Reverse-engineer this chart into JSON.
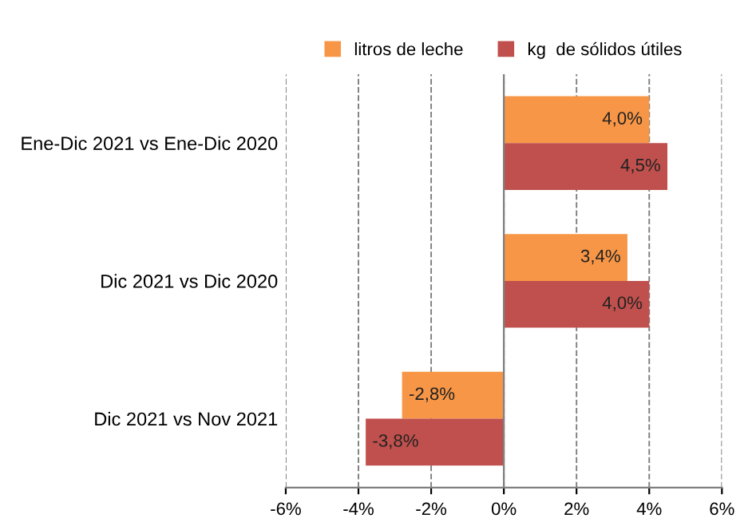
{
  "chart_data": {
    "type": "bar",
    "orientation": "horizontal",
    "categories": [
      "Ene-Dic 2021 vs Ene-Dic 2020",
      "Dic 2021 vs Dic 2020",
      "Dic 2021 vs Nov 2021"
    ],
    "series": [
      {
        "name": "litros de leche",
        "color": "#f79646",
        "values": [
          4.0,
          3.4,
          -2.8
        ],
        "value_labels": [
          "4,0%",
          "3,4%",
          "-2,8%"
        ]
      },
      {
        "name": "kg  de sólidos útiles",
        "color": "#c0504d",
        "values": [
          4.5,
          4.0,
          -3.8
        ],
        "value_labels": [
          "4,5%",
          "4,0%",
          "-3,8%"
        ]
      }
    ],
    "xlim": [
      -6,
      6
    ],
    "xticks": [
      {
        "value": -6,
        "label": "-6%"
      },
      {
        "value": -4,
        "label": "-4%"
      },
      {
        "value": -2,
        "label": "-2%"
      },
      {
        "value": 0,
        "label": "0%"
      },
      {
        "value": 2,
        "label": "2%"
      },
      {
        "value": 4,
        "label": "4%"
      },
      {
        "value": 6,
        "label": "6%"
      }
    ],
    "ref_lines": [
      {
        "axis": "x",
        "value": 0,
        "color": "#808080",
        "line_style": "solid"
      }
    ],
    "grid": "x",
    "legend": "top"
  }
}
